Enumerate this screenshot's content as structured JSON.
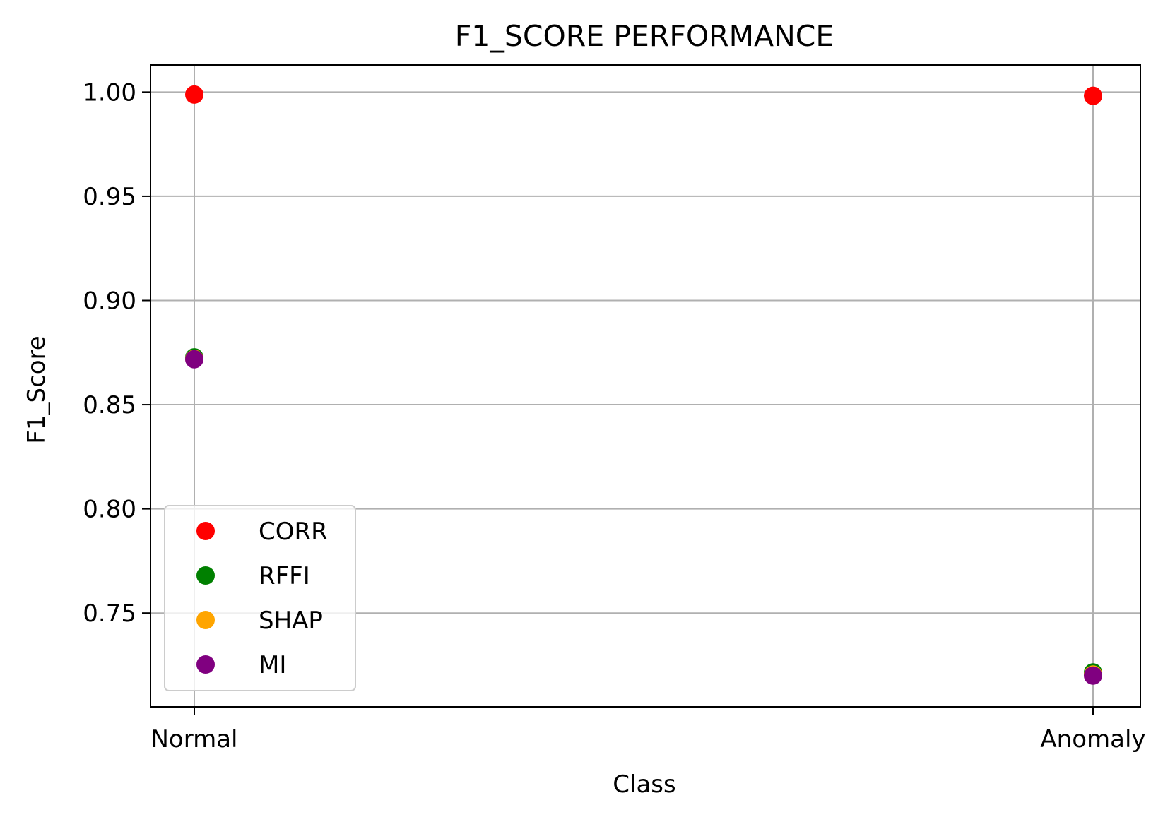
{
  "chart_data": {
    "type": "scatter",
    "title": "F1_SCORE PERFORMANCE",
    "xlabel": "Class",
    "ylabel": "F1_Score",
    "categories": [
      "Normal",
      "Anomaly"
    ],
    "ylim": [
      0.705,
      1.013
    ],
    "yticks": [
      0.75,
      0.8,
      0.85,
      0.9,
      0.95,
      1.0
    ],
    "ytick_labels": [
      "0.75",
      "0.80",
      "0.85",
      "0.90",
      "0.95",
      "1.00"
    ],
    "grid": true,
    "legend_position": "lower-left",
    "series": [
      {
        "name": "CORR",
        "color": "#ff0000",
        "values": [
          0.9988,
          0.9982
        ]
      },
      {
        "name": "RFFI",
        "color": "#008000",
        "values": [
          0.8727,
          0.7215
        ]
      },
      {
        "name": "SHAP",
        "color": "#ffa500",
        "values": [
          0.872,
          0.7205
        ]
      },
      {
        "name": "MI",
        "color": "#800080",
        "values": [
          0.8718,
          0.72
        ]
      }
    ]
  }
}
